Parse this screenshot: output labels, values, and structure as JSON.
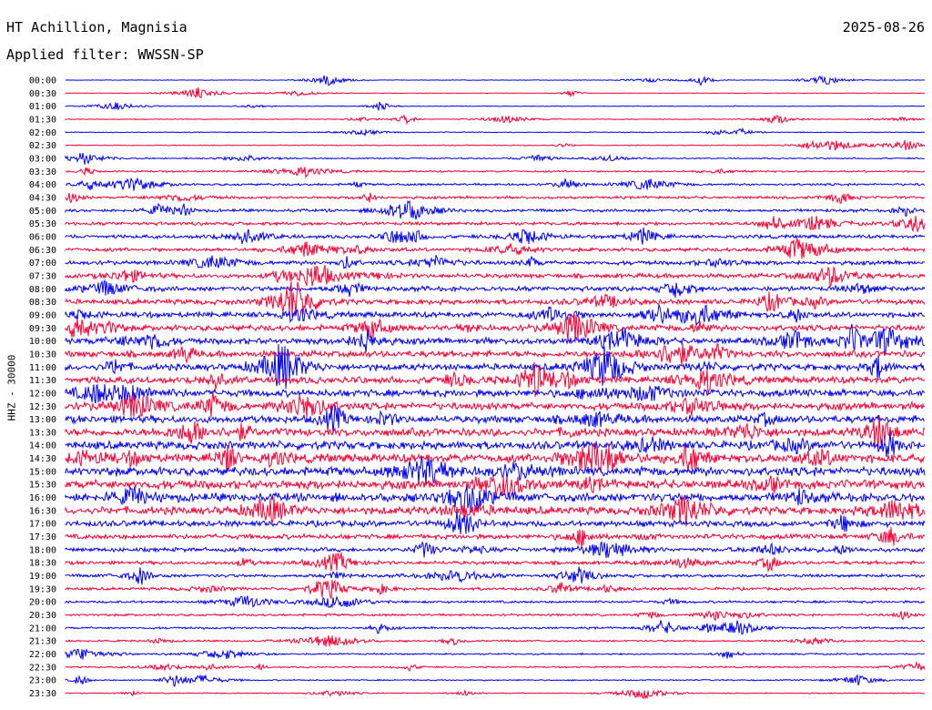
{
  "header": {
    "station": "HT Achillion, Magnisia",
    "date": "2025-08-26",
    "filter": "Applied filter: WWSSN-SP"
  },
  "chart_data": {
    "type": "line",
    "title": "HT Achillion, Magnisia",
    "date": "2025-08-26",
    "filter": "WWSSN-SP",
    "ylabel": "HHZ - 30000",
    "colors": [
      "#0000ff",
      "#ff0033"
    ],
    "categories": [
      "00:00",
      "00:30",
      "01:00",
      "01:30",
      "02:00",
      "02:30",
      "03:00",
      "03:30",
      "04:00",
      "04:30",
      "05:00",
      "05:30",
      "06:00",
      "06:30",
      "07:00",
      "07:30",
      "08:00",
      "08:30",
      "09:00",
      "09:30",
      "10:00",
      "10:30",
      "11:00",
      "11:30",
      "12:00",
      "12:30",
      "13:00",
      "13:30",
      "14:00",
      "14:30",
      "15:00",
      "15:30",
      "16:00",
      "16:30",
      "17:00",
      "17:30",
      "18:00",
      "18:30",
      "19:00",
      "19:30",
      "20:00",
      "20:30",
      "21:00",
      "21:30",
      "22:00",
      "22:30",
      "23:00",
      "23:30"
    ],
    "noise_level": [
      0.3,
      0.3,
      0.35,
      0.4,
      0.45,
      0.5,
      0.7,
      0.9,
      1.2,
      1.4,
      1.6,
      1.8,
      1.9,
      2.0,
      2.2,
      2.4,
      2.6,
      2.8,
      3.0,
      3.2,
      3.3,
      3.5,
      3.6,
      3.7,
      3.8,
      3.9,
      4.0,
      4.2,
      4.4,
      4.6,
      4.7,
      4.8,
      4.7,
      4.2,
      3.2,
      2.6,
      2.2,
      1.9,
      1.7,
      1.5,
      1.3,
      1.2,
      1.1,
      1.0,
      0.9,
      0.8,
      0.7,
      0.6
    ]
  }
}
